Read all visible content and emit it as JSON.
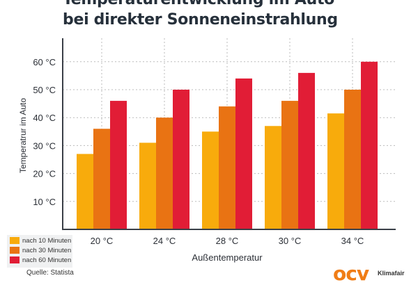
{
  "chart_data": {
    "type": "bar",
    "title": "Temperaturentwicklung im Auto",
    "subtitle": "bei direkter Sonneneinstrahlung",
    "xlabel": "Außentemperatur",
    "ylabel": "Temperatrur im Auto",
    "categories": [
      "20 °C",
      "24 °C",
      "28 °C",
      "30 °C",
      "34 °C"
    ],
    "yticks": [
      "10 °C",
      "20 °C",
      "30 °C",
      "40 °C",
      "50 °C",
      "60 °C"
    ],
    "ytick_values": [
      10,
      20,
      30,
      40,
      50,
      60
    ],
    "ylim": [
      0,
      67
    ],
    "grid": true,
    "legend_position": "bottom-left",
    "series": [
      {
        "name": "nach 10 Minuten",
        "color": "#f8ab0c",
        "values": [
          27,
          31,
          35,
          37,
          41.5
        ]
      },
      {
        "name": "nach 30 Minuten",
        "color": "#e97313",
        "values": [
          36,
          40,
          44,
          46,
          50
        ]
      },
      {
        "name": "nach 60 Minuten",
        "color": "#e11d36",
        "values": [
          46,
          50,
          54,
          56,
          60
        ]
      }
    ]
  },
  "source": "Quelle: Statista",
  "logo": {
    "mark": "ocv",
    "text": "Klimafair"
  }
}
